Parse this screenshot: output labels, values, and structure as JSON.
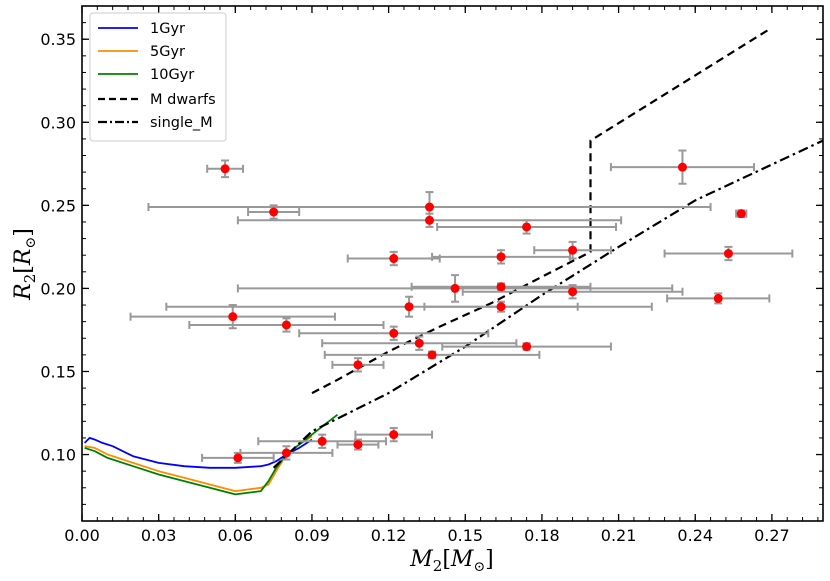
{
  "chart_data": {
    "type": "scatter",
    "xlabel_main": "M",
    "xlabel_sub": "2",
    "xlabel_bracket_unit": "M",
    "xlabel_unit_sub": "⊙",
    "ylabel_main": "R",
    "ylabel_sub": "2",
    "ylabel_bracket_unit": "R",
    "ylabel_unit_sub": "⊙",
    "xlim": [
      0.0,
      0.29
    ],
    "ylim": [
      0.06,
      0.37
    ],
    "xticks": [
      "0.00",
      "0.03",
      "0.06",
      "0.09",
      "0.12",
      "0.15",
      "0.18",
      "0.21",
      "0.24",
      "0.27"
    ],
    "xtick_values": [
      0.0,
      0.03,
      0.06,
      0.09,
      0.12,
      0.15,
      0.18,
      0.21,
      0.24,
      0.27
    ],
    "yticks": [
      "0.10",
      "0.15",
      "0.20",
      "0.25",
      "0.30",
      "0.35"
    ],
    "ytick_values": [
      0.1,
      0.15,
      0.2,
      0.25,
      0.3,
      0.35
    ],
    "legend_position": "top-left",
    "colors": {
      "1Gyr": "#0000ff",
      "5Gyr": "#ff8c00",
      "10Gyr": "#008000",
      "M dwarfs": "#000000",
      "single_M": "#000000",
      "points": "#ff0000",
      "errorbars": "#999999"
    },
    "lines": [
      {
        "name": "1Gyr",
        "style": "solid",
        "x": [
          0.001,
          0.003,
          0.005,
          0.008,
          0.012,
          0.02,
          0.03,
          0.04,
          0.05,
          0.06,
          0.07,
          0.073,
          0.076,
          0.08,
          0.085,
          0.09
        ],
        "y": [
          0.107,
          0.11,
          0.109,
          0.107,
          0.105,
          0.099,
          0.095,
          0.093,
          0.092,
          0.092,
          0.093,
          0.094,
          0.096,
          0.1,
          0.104,
          0.109
        ]
      },
      {
        "name": "5Gyr",
        "style": "solid",
        "x": [
          0.001,
          0.005,
          0.01,
          0.02,
          0.03,
          0.04,
          0.05,
          0.06,
          0.07,
          0.073,
          0.076,
          0.08,
          0.085,
          0.09
        ],
        "y": [
          0.105,
          0.104,
          0.1,
          0.095,
          0.09,
          0.086,
          0.082,
          0.078,
          0.08,
          0.082,
          0.09,
          0.1,
          0.106,
          0.111
        ]
      },
      {
        "name": "10Gyr",
        "style": "solid",
        "x": [
          0.001,
          0.005,
          0.01,
          0.02,
          0.03,
          0.04,
          0.05,
          0.06,
          0.07,
          0.073,
          0.076,
          0.08,
          0.085,
          0.09,
          0.095,
          0.1
        ],
        "y": [
          0.104,
          0.102,
          0.098,
          0.093,
          0.088,
          0.084,
          0.08,
          0.076,
          0.078,
          0.084,
          0.092,
          0.1,
          0.106,
          0.112,
          0.118,
          0.124
        ]
      },
      {
        "name": "M dwarfs",
        "style": "dashed",
        "x": [
          0.09,
          0.1,
          0.12,
          0.14,
          0.16,
          0.18,
          0.199,
          0.199,
          0.269
        ],
        "y": [
          0.137,
          0.145,
          0.162,
          0.177,
          0.191,
          0.207,
          0.222,
          0.289,
          0.356
        ]
      },
      {
        "name": "single_M",
        "style": "dashdot",
        "x": [
          0.075,
          0.09,
          0.12,
          0.15,
          0.18,
          0.21,
          0.24,
          0.29
        ],
        "y": [
          0.092,
          0.114,
          0.137,
          0.165,
          0.196,
          0.225,
          0.253,
          0.289
        ]
      }
    ],
    "points": [
      {
        "x": 0.056,
        "y": 0.272,
        "xerr": 0.007,
        "yerr": 0.005
      },
      {
        "x": 0.075,
        "y": 0.246,
        "xerr": 0.01,
        "yerr": 0.004
      },
      {
        "x": 0.136,
        "y": 0.249,
        "xerr": 0.11,
        "yerr": 0.009
      },
      {
        "x": 0.136,
        "y": 0.241,
        "xerr": 0.075,
        "yerr": 0.004
      },
      {
        "x": 0.174,
        "y": 0.237,
        "xerr": 0.035,
        "yerr": 0.004
      },
      {
        "x": 0.235,
        "y": 0.273,
        "xerr": 0.028,
        "yerr": 0.01
      },
      {
        "x": 0.258,
        "y": 0.245,
        "xerr": 0.002,
        "yerr": 0.002
      },
      {
        "x": 0.122,
        "y": 0.218,
        "xerr": 0.018,
        "yerr": 0.004
      },
      {
        "x": 0.164,
        "y": 0.219,
        "xerr": 0.027,
        "yerr": 0.004
      },
      {
        "x": 0.192,
        "y": 0.223,
        "xerr": 0.015,
        "yerr": 0.005
      },
      {
        "x": 0.253,
        "y": 0.221,
        "xerr": 0.025,
        "yerr": 0.004
      },
      {
        "x": 0.146,
        "y": 0.2,
        "xerr": 0.085,
        "yerr": 0.008
      },
      {
        "x": 0.164,
        "y": 0.201,
        "xerr": 0.035,
        "yerr": 0.002
      },
      {
        "x": 0.192,
        "y": 0.198,
        "xerr": 0.043,
        "yerr": 0.004
      },
      {
        "x": 0.249,
        "y": 0.194,
        "xerr": 0.02,
        "yerr": 0.003
      },
      {
        "x": 0.128,
        "y": 0.189,
        "xerr": 0.095,
        "yerr": 0.006
      },
      {
        "x": 0.164,
        "y": 0.189,
        "xerr": 0.03,
        "yerr": 0.003
      },
      {
        "x": 0.059,
        "y": 0.183,
        "xerr": 0.04,
        "yerr": 0.007
      },
      {
        "x": 0.08,
        "y": 0.178,
        "xerr": 0.038,
        "yerr": 0.004
      },
      {
        "x": 0.122,
        "y": 0.173,
        "xerr": 0.037,
        "yerr": 0.004
      },
      {
        "x": 0.132,
        "y": 0.167,
        "xerr": 0.038,
        "yerr": 0.004
      },
      {
        "x": 0.174,
        "y": 0.165,
        "xerr": 0.033,
        "yerr": 0.002
      },
      {
        "x": 0.137,
        "y": 0.16,
        "xerr": 0.042,
        "yerr": 0.002
      },
      {
        "x": 0.108,
        "y": 0.154,
        "xerr": 0.01,
        "yerr": 0.004
      },
      {
        "x": 0.122,
        "y": 0.112,
        "xerr": 0.015,
        "yerr": 0.004
      },
      {
        "x": 0.094,
        "y": 0.108,
        "xerr": 0.025,
        "yerr": 0.004
      },
      {
        "x": 0.108,
        "y": 0.106,
        "xerr": 0.008,
        "yerr": 0.003
      },
      {
        "x": 0.08,
        "y": 0.101,
        "xerr": 0.018,
        "yerr": 0.004
      },
      {
        "x": 0.061,
        "y": 0.098,
        "xerr": 0.014,
        "yerr": 0.003
      }
    ]
  }
}
